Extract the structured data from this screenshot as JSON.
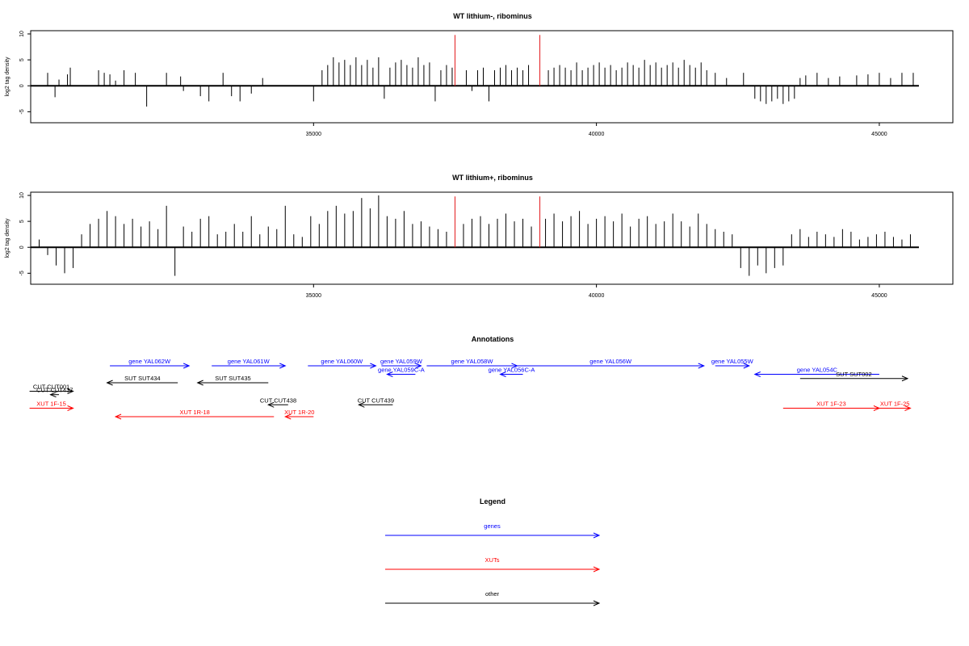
{
  "chart_data": [
    {
      "type": "bar",
      "title": "WT lithium-, ribominus",
      "xlabel": "",
      "ylabel": "log2 tag density",
      "xlim": [
        30000,
        46300
      ],
      "ylim": [
        -6.5,
        10
      ],
      "xticks": [
        35000,
        40000,
        45000
      ],
      "yticks": [
        -5,
        0,
        5,
        10
      ],
      "x_range": [
        30000,
        45700
      ],
      "markers_x": [
        37500,
        39000
      ],
      "marker_color": "#e31a1c",
      "bar_color": "#000000",
      "x": [
        30300,
        30430,
        30500,
        30650,
        30700,
        31200,
        31300,
        31400,
        31500,
        31650,
        31850,
        32050,
        32400,
        32650,
        32700,
        33000,
        33150,
        33400,
        33550,
        33700,
        33900,
        34100,
        35000,
        35150,
        35250,
        35350,
        35450,
        35550,
        35650,
        35750,
        35850,
        35950,
        36050,
        36150,
        36250,
        36350,
        36450,
        36550,
        36650,
        36750,
        36850,
        36950,
        37050,
        37150,
        37250,
        37350,
        37450,
        37700,
        37800,
        37900,
        38000,
        38100,
        38200,
        38300,
        38400,
        38500,
        38600,
        38700,
        38800,
        39150,
        39250,
        39350,
        39450,
        39550,
        39650,
        39750,
        39850,
        39950,
        40050,
        40150,
        40250,
        40350,
        40450,
        40550,
        40650,
        40750,
        40850,
        40950,
        41050,
        41150,
        41250,
        41350,
        41450,
        41550,
        41650,
        41750,
        41850,
        41950,
        42100,
        42300,
        42600,
        42800,
        42900,
        43000,
        43100,
        43200,
        43300,
        43400,
        43500,
        43600,
        43700,
        43900,
        44100,
        44300,
        44600,
        44800,
        45000,
        45200,
        45400,
        45600
      ],
      "values": [
        2.5,
        -2.2,
        1.2,
        2.2,
        3.5,
        3,
        2.5,
        2.2,
        1,
        3,
        2.5,
        -4,
        2.5,
        1.8,
        -1,
        -2,
        -3,
        2.5,
        -2,
        -3,
        -1.5,
        1.5,
        -3,
        3,
        4,
        5.5,
        4.5,
        5,
        4,
        5.5,
        4,
        5,
        3.5,
        5.5,
        -2.5,
        3.5,
        4.5,
        5,
        4,
        3.5,
        5.5,
        4,
        4.5,
        -3,
        3,
        4,
        3.5,
        3,
        -1,
        3,
        3.5,
        -3,
        3,
        3.5,
        4,
        3,
        3.5,
        3,
        4,
        3,
        3.5,
        4,
        3.5,
        3,
        4.5,
        3,
        3.5,
        4,
        4.5,
        3.5,
        4,
        3,
        3.5,
        4.5,
        4,
        3.5,
        5,
        4,
        4.5,
        3.5,
        4,
        4.5,
        3.5,
        5,
        4,
        3.5,
        4.5,
        3,
        2.5,
        1.5,
        2.5,
        -2.5,
        -3,
        -3.5,
        -3,
        -2.5,
        -3.5,
        -3,
        -2.5,
        1.5,
        2,
        2.5,
        1.5,
        1.8,
        2,
        2.2,
        2.5,
        1.5,
        2.5,
        2.5
      ]
    },
    {
      "type": "bar",
      "title": "WT lithium+, ribominus",
      "xlabel": "",
      "ylabel": "log2 tag density",
      "xlim": [
        30000,
        46300
      ],
      "ylim": [
        -6.5,
        10
      ],
      "xticks": [
        35000,
        40000,
        45000
      ],
      "yticks": [
        -5,
        0,
        5,
        10
      ],
      "x_range": [
        30000,
        45700
      ],
      "markers_x": [
        37500,
        39000
      ],
      "marker_color": "#e31a1c",
      "bar_color": "#000000",
      "x": [
        30150,
        30300,
        30450,
        30600,
        30750,
        30900,
        31050,
        31200,
        31350,
        31500,
        31650,
        31800,
        31950,
        32100,
        32250,
        32400,
        32550,
        32700,
        32850,
        33000,
        33150,
        33300,
        33450,
        33600,
        33750,
        33900,
        34050,
        34200,
        34350,
        34500,
        34650,
        34800,
        34950,
        35100,
        35250,
        35400,
        35550,
        35700,
        35850,
        36000,
        36150,
        36300,
        36450,
        36600,
        36750,
        36900,
        37050,
        37200,
        37350,
        37650,
        37800,
        37950,
        38100,
        38250,
        38400,
        38550,
        38700,
        38850,
        39100,
        39250,
        39400,
        39550,
        39700,
        39850,
        40000,
        40150,
        40300,
        40450,
        40600,
        40750,
        40900,
        41050,
        41200,
        41350,
        41500,
        41650,
        41800,
        41950,
        42100,
        42250,
        42400,
        42550,
        42700,
        42850,
        43000,
        43150,
        43300,
        43450,
        43600,
        43750,
        43900,
        44050,
        44200,
        44350,
        44500,
        44650,
        44800,
        44950,
        45100,
        45250,
        45400,
        45550
      ],
      "values": [
        1.5,
        -1.5,
        -3.5,
        -5,
        -4,
        2.5,
        4.5,
        5.5,
        7,
        6,
        4.5,
        5.5,
        4,
        5,
        3.5,
        8,
        -5.5,
        4,
        3,
        5.5,
        6,
        2.5,
        3,
        4.5,
        3,
        6,
        2.5,
        4,
        3.5,
        8,
        2.5,
        2,
        6,
        4.5,
        7,
        8,
        6.5,
        7,
        9.5,
        7.5,
        10,
        6,
        5.5,
        7,
        4.5,
        5,
        4,
        3.5,
        3,
        4.5,
        5.5,
        6,
        4.5,
        5.5,
        6.5,
        5,
        5.5,
        4,
        5.5,
        6.5,
        5,
        6,
        7,
        4.5,
        5.5,
        6,
        5,
        6.5,
        4,
        5.5,
        6,
        4.5,
        5,
        6.5,
        5,
        4,
        6.5,
        4.5,
        3.5,
        3,
        2.5,
        -4,
        -5.5,
        -3.5,
        -5,
        -4,
        -3.5,
        2.5,
        3.5,
        2,
        3,
        2.5,
        2,
        3.5,
        3,
        1.5,
        2,
        2.5,
        3,
        2,
        1.5,
        2.5
      ]
    }
  ],
  "annotations": {
    "title": "Annotations",
    "xlim": [
      30000,
      46300
    ],
    "genes": [
      {
        "label": "gene YAL062W",
        "start": 31400,
        "end": 32800,
        "dir": "right",
        "row": 0
      },
      {
        "label": "gene YAL061W",
        "start": 33200,
        "end": 34500,
        "dir": "right",
        "row": 0
      },
      {
        "label": "gene YAL060W",
        "start": 34900,
        "end": 36100,
        "dir": "right",
        "row": 0
      },
      {
        "label": "gene YAL059W",
        "start": 36200,
        "end": 36900,
        "dir": "right",
        "row": 0
      },
      {
        "label": "gene YAL059C-A",
        "start": 36300,
        "end": 36800,
        "dir": "left",
        "row": 1
      },
      {
        "label": "gene YAL058W",
        "start": 37000,
        "end": 38600,
        "dir": "right",
        "row": 0
      },
      {
        "label": "gene YAL056C-A",
        "start": 38300,
        "end": 38700,
        "dir": "left",
        "row": 1
      },
      {
        "label": "gene YAL056W",
        "start": 38600,
        "end": 41900,
        "dir": "right",
        "row": 0
      },
      {
        "label": "gene YAL055W",
        "start": 42100,
        "end": 42700,
        "dir": "right",
        "row": 0
      },
      {
        "label": "gene YAL054C",
        "start": 42800,
        "end": 45000,
        "dir": "left",
        "row": 1
      }
    ],
    "others": [
      {
        "label": "SUT SUT434",
        "start": 31350,
        "end": 32600,
        "dir": "left",
        "row": 2
      },
      {
        "label": "SUT SUT435",
        "start": 32950,
        "end": 34200,
        "dir": "left",
        "row": 2
      },
      {
        "label": "SUT SUT002",
        "start": 43600,
        "end": 45500,
        "dir": "right",
        "row": 1.5
      },
      {
        "label": "CUT CUT001",
        "start": 29980,
        "end": 30750,
        "dir": "right",
        "row": 3
      },
      {
        "label": "CUT CUT437",
        "start": 30350,
        "end": 30500,
        "dir": "left",
        "row": 3.4
      },
      {
        "label": "CUT CUT438",
        "start": 34200,
        "end": 34550,
        "dir": "left",
        "row": 4.6
      },
      {
        "label": "CUT CUT439",
        "start": 35800,
        "end": 36400,
        "dir": "left",
        "row": 4.6
      }
    ],
    "xuts": [
      {
        "label": "XUT 1F-15",
        "start": 29980,
        "end": 30750,
        "dir": "right",
        "row": 5
      },
      {
        "label": "XUT 1R-18",
        "start": 31500,
        "end": 34300,
        "dir": "left",
        "row": 6
      },
      {
        "label": "XUT 1R-20",
        "start": 34500,
        "end": 35000,
        "dir": "left",
        "row": 6
      },
      {
        "label": "XUT 1F-23",
        "start": 43300,
        "end": 45000,
        "dir": "right",
        "row": 5
      },
      {
        "label": "XUT 1F-25",
        "start": 45000,
        "end": 45550,
        "dir": "right",
        "row": 5
      }
    ]
  },
  "legend": {
    "title": "Legend",
    "items": [
      {
        "label": "genes",
        "color": "#0000ff"
      },
      {
        "label": "XUTs",
        "color": "#ff0000"
      },
      {
        "label": "other",
        "color": "#000000"
      }
    ]
  },
  "colors": {
    "genes": "#0000ff",
    "xuts": "#ff0000",
    "other": "#000000"
  }
}
